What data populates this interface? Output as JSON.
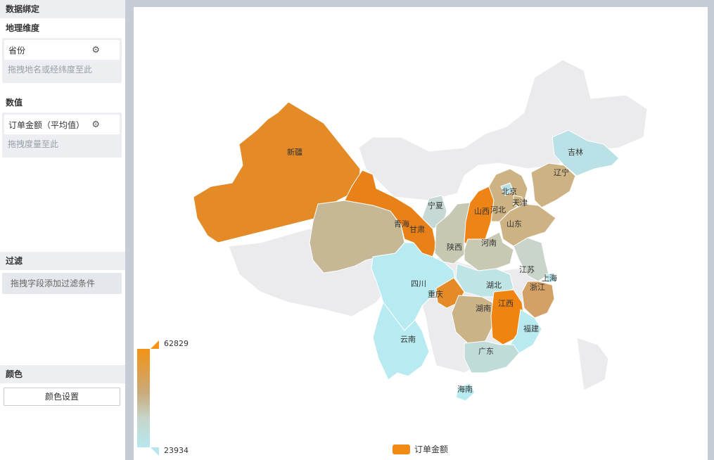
{
  "panel": {
    "data_binding_title": "数据绑定",
    "geo_dimension_label": "地理维度",
    "geo_field": "省份",
    "geo_drop_hint": "拖拽地名或经纬度至此",
    "value_label": "数值",
    "value_field": "订单金额（平均值）",
    "value_drop_hint": "拖拽度量至此",
    "filter_title": "过滤",
    "filter_hint": "拖拽字段添加过滤条件",
    "color_title": "颜色",
    "color_button": "颜色设置"
  },
  "legend": {
    "max": "62829",
    "min": "23934",
    "series_name": "订单金额",
    "series_color": "#f08a12",
    "gradient": [
      "#f39214",
      "#c8ab7c",
      "#c6d5c8",
      "#b7e7ee"
    ]
  },
  "map": {
    "provinces": [
      {
        "name": "新疆",
        "value": 60000
      },
      {
        "name": "青海",
        "value": 45000
      },
      {
        "name": "甘肃",
        "value": 61000
      },
      {
        "name": "宁夏",
        "value": 25000
      },
      {
        "name": "陕西",
        "value": 39000
      },
      {
        "name": "山西",
        "value": 62000
      },
      {
        "name": "河北",
        "value": 44000
      },
      {
        "name": "北京",
        "value": 24000
      },
      {
        "name": "天津",
        "value": 43000
      },
      {
        "name": "辽宁",
        "value": 44000
      },
      {
        "name": "吉林",
        "value": 26000
      },
      {
        "name": "山东",
        "value": 46000
      },
      {
        "name": "河南",
        "value": 38000
      },
      {
        "name": "江苏",
        "value": 37000
      },
      {
        "name": "上海",
        "value": 25000
      },
      {
        "name": "浙江",
        "value": 50000
      },
      {
        "name": "湖北",
        "value": 27000
      },
      {
        "name": "四川",
        "value": 24000
      },
      {
        "name": "重庆",
        "value": 58000
      },
      {
        "name": "湖南",
        "value": 45000
      },
      {
        "name": "江西",
        "value": 62000
      },
      {
        "name": "福建",
        "value": 25000
      },
      {
        "name": "云南",
        "value": 24000
      },
      {
        "name": "广东",
        "value": 33000
      },
      {
        "name": "海南",
        "value": 26000
      }
    ]
  }
}
